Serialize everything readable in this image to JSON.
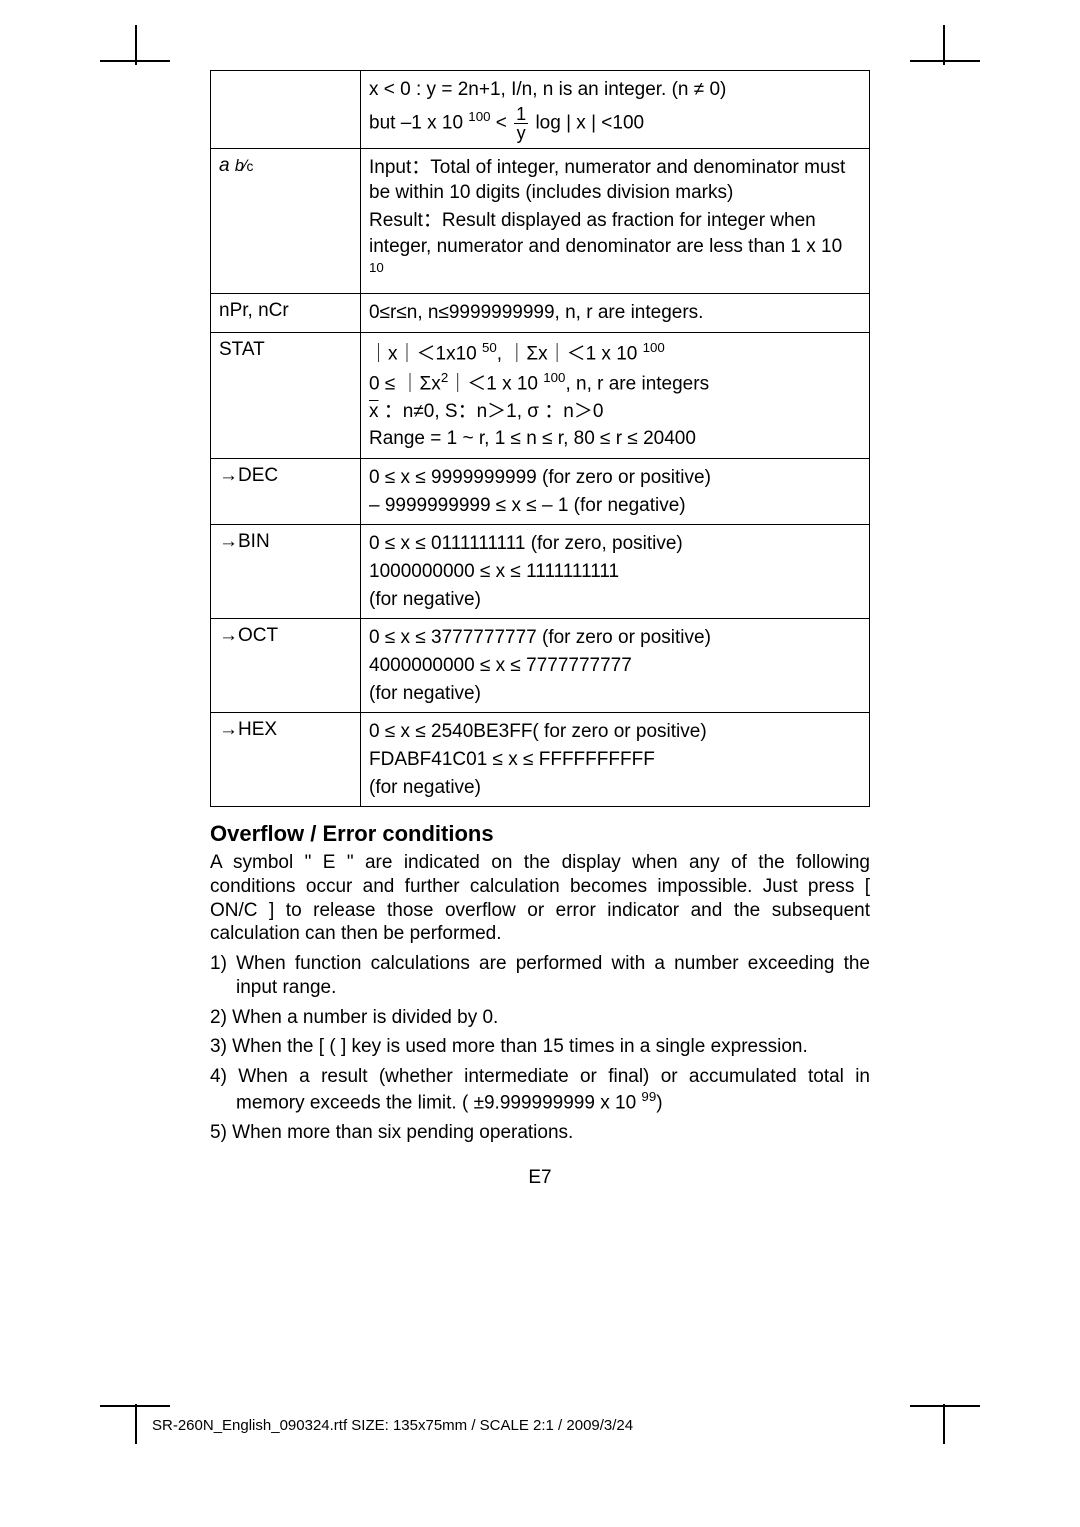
{
  "table": {
    "rows": [
      {
        "left": "",
        "right_lines": [
          "x < 0 : y = 2n+1, I/n, n is an integer. (n ≠ 0)",
          "but –1 x 10 <sup>100</sup> < <frac>1|y</frac>  log | x | <100"
        ]
      },
      {
        "left": "a b⁄c",
        "right_lines": [
          "Input：Total of integer, numerator and denominator must be within 10 digits (includes division marks)",
          "Result：Result displayed as fraction for integer when integer, numerator and denominator are less than 1 x 10 <sup>10</sup>"
        ]
      },
      {
        "left": "nPr, nCr",
        "right_lines": [
          "0≤r≤n, n≤9999999999, n, r are integers."
        ]
      },
      {
        "left": "STAT",
        "right_lines": [
          "｜x｜＜1x10 <sup>50</sup>, ｜Σx｜＜1 x 10 <sup>100</sup>",
          "0 ≤ ｜Σx<sup>2</sup>｜＜1 x 10 <sup>100</sup>, n, r are integers",
          "<xbar>x</xbar> ：n≠0, S：n＞1, σ ：n＞0",
          "Range = 1 ~ r, 1 ≤ n ≤ r, 80 ≤ r ≤ 20400"
        ]
      },
      {
        "left": "→DEC",
        "right_lines": [
          "0 ≤  x ≤  9999999999 (for zero or positive)",
          "– 9999999999 ≤ x ≤ – 1 (for negative)"
        ]
      },
      {
        "left": "→BIN",
        "right_lines": [
          "0 ≤  x ≤  0111111111 (for zero, positive)",
          "1000000000 ≤ x ≤ 1111111111",
          "(for negative)"
        ]
      },
      {
        "left": "→OCT",
        "right_lines": [
          "0 ≤  x ≤  3777777777 (for zero or positive)",
          "4000000000 ≤ x ≤ 7777777777",
          "(for negative)"
        ]
      },
      {
        "left": "→HEX",
        "right_lines": [
          "0 ≤  x ≤  2540BE3FF( for zero or positive)",
          "FDABF41C01 ≤ x ≤ FFFFFFFFFF",
          "(for negative)"
        ]
      }
    ]
  },
  "section_title": "Overflow / Error conditions",
  "para1": "A symbol \" E \" are indicated on the display when any of the following conditions occur and further calculation becomes impossible. Just press [ ON/C ] to release those overflow or error indicator and the subsequent calculation can then be performed.",
  "items": [
    "1) When function calculations are performed with a number exceeding the input range.",
    "2) When a number is divided by 0.",
    "3) When the [ ( ] key is used more than 15 times in a single expression.",
    "4) When a result (whether intermediate or final) or accumulated total in memory exceeds the limit. ( ±9.999999999 x 10 <sup>99</sup>)",
    "5) When more than six pending operations."
  ],
  "pagenum": "E7",
  "footer": "SR-260N_English_090324.rtf        SIZE: 135x75mm      /    SCALE 2:1    /    2009/3/24"
}
